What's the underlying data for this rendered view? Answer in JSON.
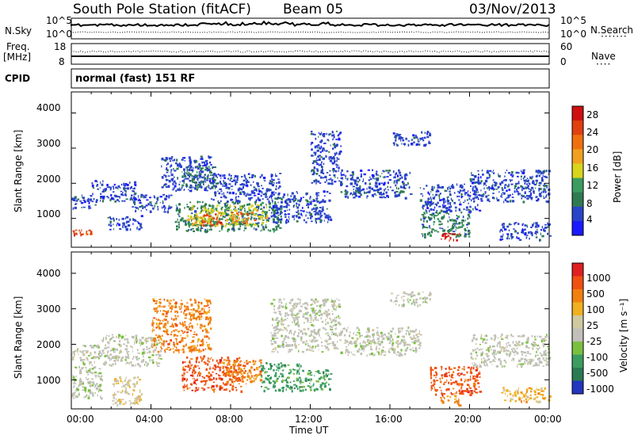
{
  "header": {
    "title": "South Pole Station (fitACF)",
    "beam": "Beam 05",
    "date": "03/Nov/2013"
  },
  "sky_panel": {
    "left_label": "N.Sky",
    "left_ticks": [
      "10^5",
      "10^0"
    ],
    "right_ticks": [
      "10^5",
      "10^0"
    ],
    "right_label": "N.Search"
  },
  "freq_panel": {
    "label_line1": "Freq.",
    "label_line2": "[MHz]",
    "left_ticks": [
      "18",
      "8"
    ],
    "right_ticks": [
      "60",
      "0"
    ],
    "right_label": "Nave"
  },
  "cpid": {
    "label": "CPID",
    "value": "normal (fast) 151 RF"
  },
  "colors": {
    "power_scale": [
      "#1a1aff",
      "#2a44c8",
      "#2f7a52",
      "#3b9c60",
      "#d9d41c",
      "#f0a020",
      "#f07010",
      "#e04010",
      "#d01010"
    ],
    "velocity_scale": [
      "#2236c0",
      "#2a7a52",
      "#3b9c60",
      "#7ac040",
      "#c0c0b8",
      "#d0c8a0",
      "#f0b020",
      "#f08010",
      "#f05010",
      "#e02020"
    ]
  },
  "chart_data": [
    {
      "type": "heatmap",
      "panel": "power",
      "ylabel": "Slant Range [km]",
      "ylim": [
        180,
        4600
      ],
      "yticks": [
        "1000",
        "2000",
        "3000",
        "4000"
      ],
      "x_range_hours": [
        0,
        24
      ],
      "colorbar_label": "Power [dB]",
      "colorbar_ticks": [
        "4",
        "8",
        "12",
        "16",
        "20",
        "24",
        "28"
      ],
      "regions": [
        {
          "x0": 0.0,
          "x1": 1.2,
          "y0": 1300,
          "y1": 1700,
          "level": 1
        },
        {
          "x0": 0.0,
          "x1": 1.1,
          "y0": 550,
          "y1": 700,
          "level": 7
        },
        {
          "x0": 1.0,
          "x1": 3.2,
          "y0": 1500,
          "y1": 2100,
          "level": 1
        },
        {
          "x0": 1.8,
          "x1": 3.5,
          "y0": 700,
          "y1": 1100,
          "level": 1
        },
        {
          "x0": 3.0,
          "x1": 5.0,
          "y0": 1200,
          "y1": 1700,
          "level": 1
        },
        {
          "x0": 4.5,
          "x1": 7.0,
          "y0": 1800,
          "y1": 2800,
          "level": 1
        },
        {
          "x0": 5.5,
          "x1": 7.2,
          "y0": 1900,
          "y1": 2500,
          "level": 2
        },
        {
          "x0": 5.2,
          "x1": 10.5,
          "y0": 650,
          "y1": 1500,
          "level": 2
        },
        {
          "x0": 5.8,
          "x1": 9.8,
          "y0": 800,
          "y1": 1400,
          "level": 4
        },
        {
          "x0": 6.5,
          "x1": 7.6,
          "y0": 800,
          "y1": 1150,
          "level": 7
        },
        {
          "x0": 8.0,
          "x1": 9.2,
          "y0": 900,
          "y1": 1200,
          "level": 6
        },
        {
          "x0": 7.0,
          "x1": 10.5,
          "y0": 1500,
          "y1": 2300,
          "level": 1
        },
        {
          "x0": 10.0,
          "x1": 13.0,
          "y0": 900,
          "y1": 1800,
          "level": 1
        },
        {
          "x0": 12.0,
          "x1": 13.5,
          "y0": 2000,
          "y1": 3500,
          "level": 1
        },
        {
          "x0": 13.5,
          "x1": 17.0,
          "y0": 1600,
          "y1": 2400,
          "level": 1
        },
        {
          "x0": 16.0,
          "x1": 18.0,
          "y0": 3100,
          "y1": 3500,
          "level": 1
        },
        {
          "x0": 17.5,
          "x1": 20.5,
          "y0": 1200,
          "y1": 2000,
          "level": 1
        },
        {
          "x0": 17.5,
          "x1": 20.0,
          "y0": 500,
          "y1": 1200,
          "level": 2
        },
        {
          "x0": 18.5,
          "x1": 19.5,
          "y0": 400,
          "y1": 600,
          "level": 8
        },
        {
          "x0": 20.0,
          "x1": 24.0,
          "y0": 1500,
          "y1": 2400,
          "level": 1
        },
        {
          "x0": 21.5,
          "x1": 24.0,
          "y0": 400,
          "y1": 900,
          "level": 1
        }
      ]
    },
    {
      "type": "heatmap",
      "panel": "velocity",
      "ylabel": "Slant Range [km]",
      "ylim": [
        180,
        4600
      ],
      "yticks": [
        "1000",
        "2000",
        "3000",
        "4000"
      ],
      "xlabel": "Time UT",
      "xticks": [
        "00:00",
        "04:00",
        "08:00",
        "12:00",
        "16:00",
        "20:00",
        "00:00"
      ],
      "x_range_hours": [
        0,
        24
      ],
      "colorbar_label": "Velocity [m s⁻¹]",
      "colorbar_ticks": [
        "1000",
        "500",
        "100",
        "25",
        "-25",
        "-100",
        "-500",
        "-1000"
      ],
      "regions": [
        {
          "x0": 0.0,
          "x1": 1.5,
          "y0": 500,
          "y1": 2000,
          "level": 4
        },
        {
          "x0": 1.5,
          "x1": 4.5,
          "y0": 1400,
          "y1": 2300,
          "level": 4
        },
        {
          "x0": 2.0,
          "x1": 3.5,
          "y0": 300,
          "y1": 1100,
          "level": 5
        },
        {
          "x0": 4.0,
          "x1": 7.0,
          "y0": 1800,
          "y1": 3300,
          "level": 7
        },
        {
          "x0": 5.5,
          "x1": 8.5,
          "y0": 700,
          "y1": 1700,
          "level": 8
        },
        {
          "x0": 7.5,
          "x1": 9.5,
          "y0": 900,
          "y1": 1600,
          "level": 7
        },
        {
          "x0": 9.5,
          "x1": 11.5,
          "y0": 700,
          "y1": 1500,
          "level": 2
        },
        {
          "x0": 10.0,
          "x1": 13.5,
          "y0": 1800,
          "y1": 3300,
          "level": 4
        },
        {
          "x0": 11.5,
          "x1": 13.0,
          "y0": 700,
          "y1": 1300,
          "level": 2
        },
        {
          "x0": 13.5,
          "x1": 17.5,
          "y0": 1700,
          "y1": 2500,
          "level": 4
        },
        {
          "x0": 16.0,
          "x1": 18.0,
          "y0": 3100,
          "y1": 3500,
          "level": 4
        },
        {
          "x0": 18.0,
          "x1": 20.5,
          "y0": 600,
          "y1": 1400,
          "level": 8
        },
        {
          "x0": 18.5,
          "x1": 19.5,
          "y0": 300,
          "y1": 600,
          "level": 7
        },
        {
          "x0": 20.0,
          "x1": 24.0,
          "y0": 1400,
          "y1": 2300,
          "level": 4
        },
        {
          "x0": 21.5,
          "x1": 24.0,
          "y0": 400,
          "y1": 800,
          "level": 6
        }
      ]
    }
  ]
}
